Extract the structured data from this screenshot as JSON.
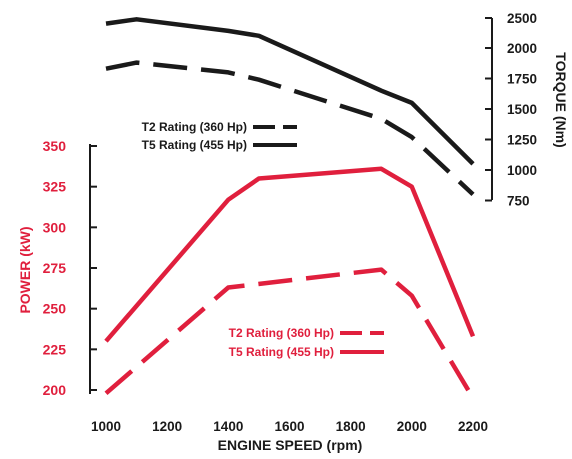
{
  "chart_data": {
    "type": "line",
    "title": "",
    "colors": {
      "power": "#e01f3d",
      "torque": "#1a1a1a",
      "background": "#ffffff"
    },
    "x_axis": {
      "label": "ENGINE SPEED (rpm)",
      "ticks": [
        "1000",
        "1200",
        "1400",
        "1600",
        "1800",
        "2000",
        "2200"
      ],
      "range": [
        1000,
        2200
      ]
    },
    "y_axis_left": {
      "label": "POWER (kW)",
      "ticks": [
        "350",
        "325",
        "300",
        "275",
        "250",
        "225",
        "200"
      ],
      "range": [
        200,
        350
      ]
    },
    "y_axis_right": {
      "label": "TORQUE (Nm)",
      "ticks": [
        "2500",
        "2000",
        "1750",
        "1500",
        "1250",
        "1000",
        "750"
      ],
      "range": [
        750,
        2500
      ]
    },
    "series": [
      {
        "name": "T5 Rating (455 Hp)",
        "quantity": "power",
        "style": "solid",
        "x": [
          1000,
          1400,
          1500,
          1900,
          2000,
          2200
        ],
        "y": [
          230,
          317,
          330,
          336,
          325,
          233
        ]
      },
      {
        "name": "T2 Rating (360 Hp)",
        "quantity": "power",
        "style": "dashed",
        "x": [
          1000,
          1400,
          1900,
          2000,
          2200
        ],
        "y": [
          198,
          263,
          274,
          258,
          195
        ]
      },
      {
        "name": "T5 Rating (455 Hp)",
        "quantity": "torque",
        "style": "solid",
        "x": [
          1000,
          1100,
          1400,
          1500,
          1900,
          2000,
          2200
        ],
        "y": [
          2200,
          2235,
          2140,
          2100,
          1650,
          1550,
          1050
        ]
      },
      {
        "name": "T2 Rating (360 Hp)",
        "quantity": "torque",
        "style": "dashed",
        "x": [
          1000,
          1100,
          1400,
          1500,
          1900,
          2000,
          2200
        ],
        "y": [
          1830,
          1880,
          1800,
          1740,
          1420,
          1270,
          800
        ]
      }
    ],
    "legends": {
      "torque": [
        {
          "label": "T2 Rating (360 Hp)",
          "style": "dashed"
        },
        {
          "label": "T5 Rating (455 Hp)",
          "style": "solid"
        }
      ],
      "power": [
        {
          "label": "T2 Rating (360 Hp)",
          "style": "dashed"
        },
        {
          "label": "T5 Rating (455 Hp)",
          "style": "solid"
        }
      ]
    }
  }
}
